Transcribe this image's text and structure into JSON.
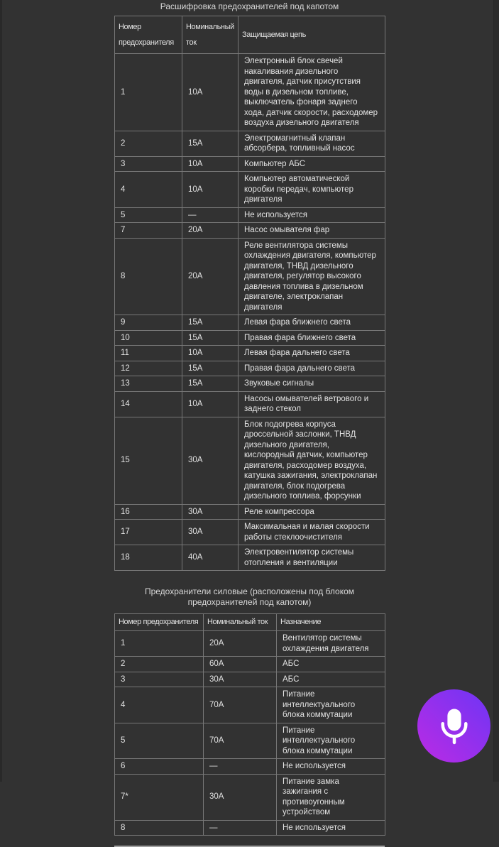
{
  "page": {
    "background": "#323232",
    "text_color": "#e2e2e2",
    "border_color": "#777777"
  },
  "section1": {
    "title": "Расшифровка предохранителей под капотом",
    "table": {
      "headers": [
        "Номер предохранителя",
        "Номинальный ток",
        "Защищаемая цепь"
      ],
      "rows": [
        [
          "1",
          "10А",
          "Электронный блок свечей накаливания дизельного двигателя, датчик присутствия воды в дизельном топливе, выключатель фонаря заднего хода, датчик скорости, расходомер воздуха дизельного двигателя"
        ],
        [
          "2",
          "15А",
          "Электромагнитный клапан абсорбера, топливный насос"
        ],
        [
          "3",
          "10А",
          "Компьютер АБС"
        ],
        [
          "4",
          "10А",
          "Компьютер автоматической коробки передач, компьютер двигателя"
        ],
        [
          "5",
          "—",
          "Не используется"
        ],
        [
          "7",
          "20А",
          "Насос омывателя фар"
        ],
        [
          "8",
          "20А",
          "Реле вентилятора системы охлаждения двигателя, компьютер двигателя, ТНВД дизельного двигателя, регулятор высокого давления топлива в дизельном двигателе, электроклапан двигателя"
        ],
        [
          "9",
          "15А",
          "Левая фара ближнего света"
        ],
        [
          "10",
          "15А",
          "Правая фара ближнего света"
        ],
        [
          "11",
          "10А",
          "Левая фара дальнего света"
        ],
        [
          "12",
          "15А",
          "Правая фара дальнего света"
        ],
        [
          "13",
          "15А",
          "Звуковые сигналы"
        ],
        [
          "14",
          "10А",
          "Насосы омывателей ветрового и заднего стекол"
        ],
        [
          "15",
          "30А",
          "Блок подогрева корпуса дроссельной заслонки, ТНВД дизельного двигателя, кислородный датчик, компьютер двигателя, расходомер воздуха, катушка зажигания, электроклапан двигателя, блок подогрева дизельного топлива, форсунки"
        ],
        [
          "16",
          "30А",
          "Реле компрессора"
        ],
        [
          "17",
          "30А",
          "Максимальная и малая скорости работы стеклоочистителя"
        ],
        [
          "18",
          "40А",
          "Электровентилятор системы отопления и вентиляции"
        ]
      ]
    }
  },
  "section2": {
    "title": "Предохранители силовые (расположены под блоком предохранителей под капотом)",
    "table": {
      "headers": [
        "Номер предохранителя",
        "Номинальный ток",
        "Назначение"
      ],
      "rows": [
        [
          "1",
          "20А",
          "Вентилятор системы охлаждения двигателя"
        ],
        [
          "2",
          "60А",
          "АБС"
        ],
        [
          "3",
          "30А",
          "АБС"
        ],
        [
          "4",
          "70А",
          "Питание интеллектуального блока коммутации"
        ],
        [
          "5",
          "70А",
          "Питание интеллектуального блока коммутации"
        ],
        [
          "6",
          "—",
          "Не используется"
        ],
        [
          "7*",
          "30А",
          "Питание замка зажигания с противоугонным устройством"
        ],
        [
          "8",
          "—",
          "Не используется"
        ]
      ]
    }
  },
  "fab": {
    "icon": "microphone-icon",
    "gradient_from": "#bb2be4",
    "gradient_to": "#6e35f5",
    "icon_color": "#ffffff"
  }
}
